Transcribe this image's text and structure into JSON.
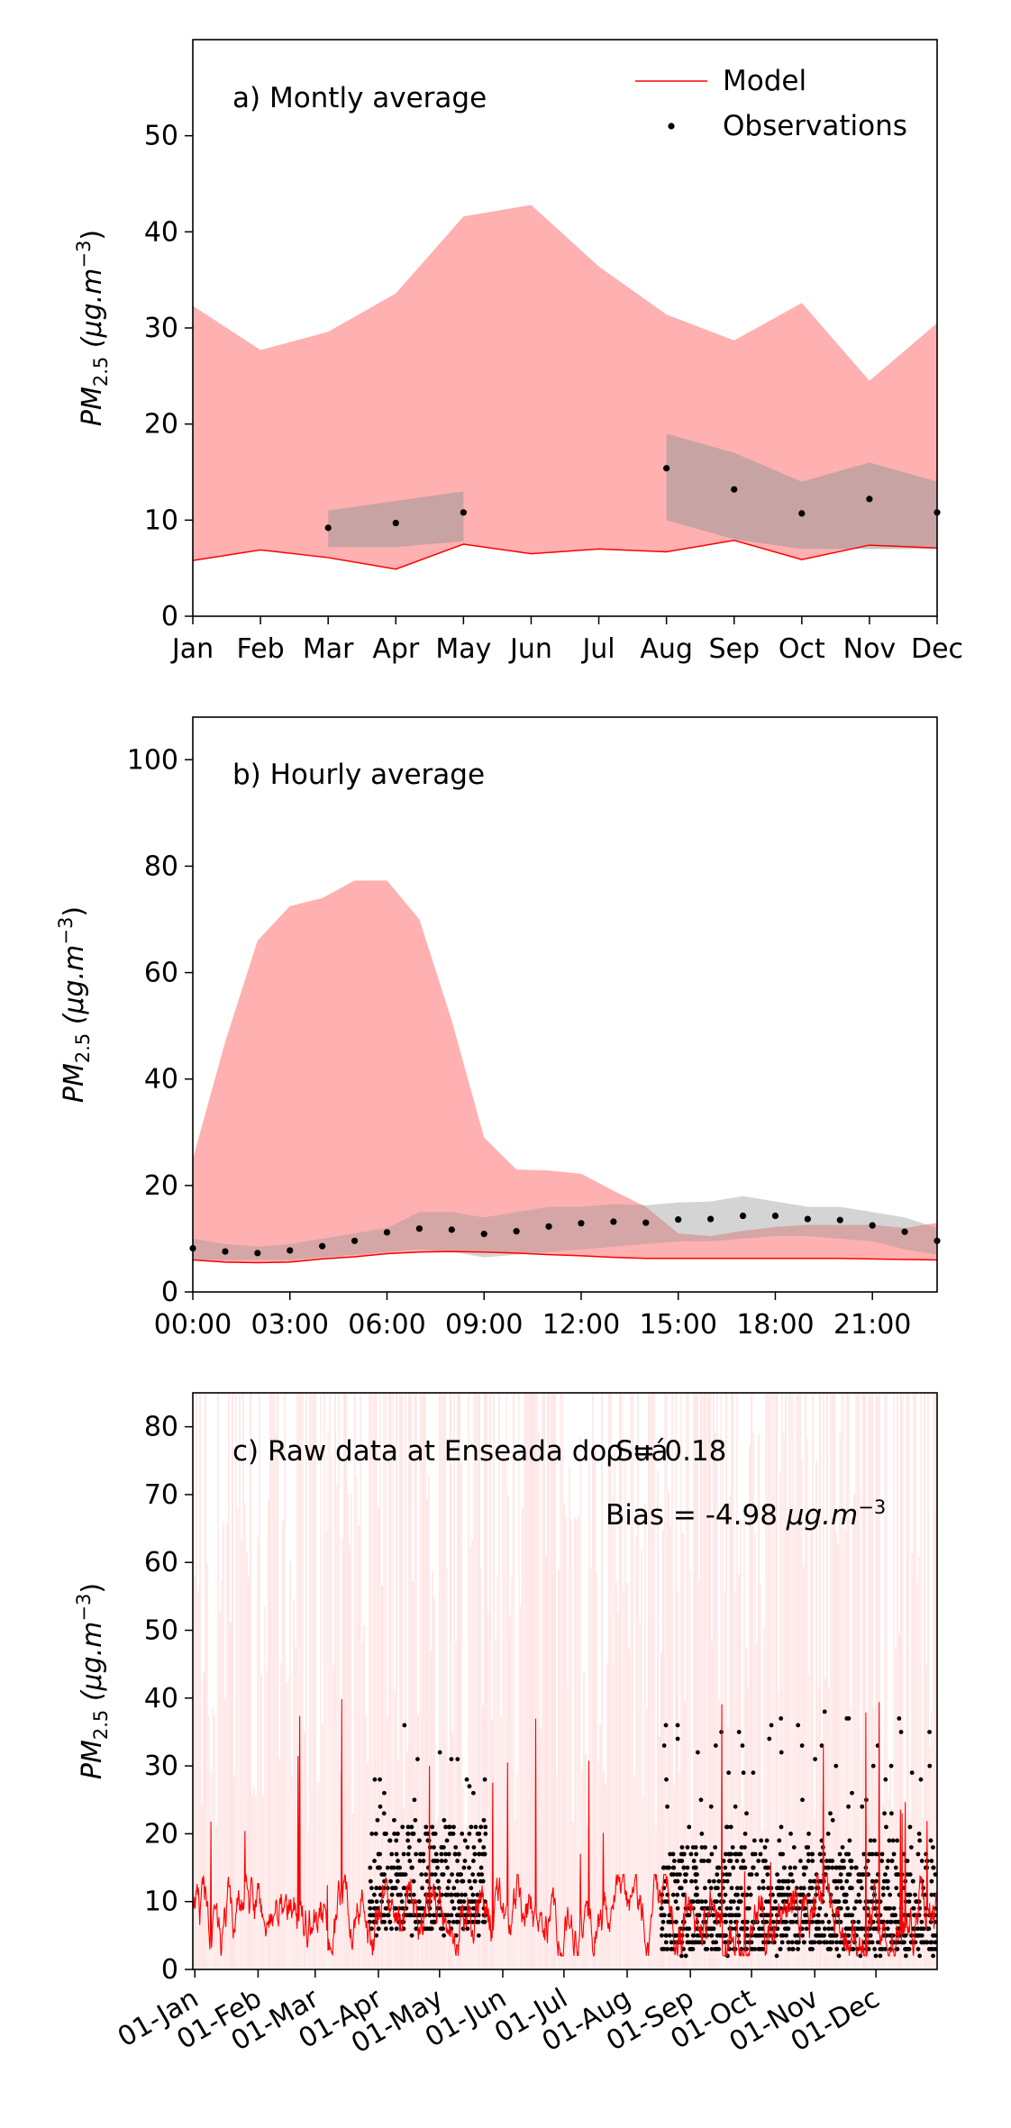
{
  "colors": {
    "model": "#ff0000",
    "model_band": "#ffb0b0",
    "obs_band": "#999999",
    "obs_point": "#000000",
    "raw_band": "#ffdddd"
  },
  "legend": {
    "placement": "top-right",
    "model_label": "Model",
    "obs_label": "Observations"
  },
  "chart_data": [
    {
      "id": "monthly",
      "type": "area",
      "title": "a) Montly average",
      "ylabel_base": "PM",
      "ylabel_sub": "2.5",
      "ylabel_unit": "(μg.m",
      "ylabel_exp": "−3",
      "ylabel_close": ")",
      "ylim": [
        0,
        60
      ],
      "yticks": [
        0,
        10,
        20,
        30,
        40,
        50
      ],
      "categories": [
        "Jan",
        "Feb",
        "Mar",
        "Apr",
        "May",
        "Jun",
        "Jul",
        "Aug",
        "Sep",
        "Oct",
        "Nov",
        "Dec"
      ],
      "model_upper": [
        32.3,
        27.7,
        29.6,
        33.6,
        41.6,
        42.8,
        36.4,
        31.4,
        28.7,
        32.6,
        24.5,
        30.5
      ],
      "model_lower": [
        5.8,
        6.9,
        6.1,
        4.9,
        7.5,
        6.5,
        7.0,
        6.7,
        7.9,
        5.9,
        7.4,
        7.1
      ],
      "obs_band_segments": [
        {
          "months": [
            2,
            3,
            4
          ],
          "upper": [
            11.0,
            12.0,
            13.0
          ],
          "lower": [
            7.2,
            7.2,
            7.8
          ]
        },
        {
          "months": [
            7,
            8,
            9,
            10,
            11
          ],
          "upper": [
            19.0,
            17.0,
            14.0,
            16.0,
            14.0
          ],
          "lower": [
            10.0,
            8.0,
            7.0,
            7.0,
            7.0
          ]
        }
      ],
      "observations": [
        {
          "month": 2,
          "value": 9.2
        },
        {
          "month": 3,
          "value": 9.7
        },
        {
          "month": 4,
          "value": 10.8
        },
        {
          "month": 7,
          "value": 15.4
        },
        {
          "month": 8,
          "value": 13.2
        },
        {
          "month": 9,
          "value": 10.7
        },
        {
          "month": 10,
          "value": 12.2
        },
        {
          "month": 11,
          "value": 10.8
        }
      ]
    },
    {
      "id": "hourly",
      "type": "area",
      "title": "b) Hourly average",
      "ylabel_base": "PM",
      "ylabel_sub": "2.5",
      "ylabel_unit": "(μg.m",
      "ylabel_exp": "−3",
      "ylabel_close": ")",
      "ylim": [
        0,
        108
      ],
      "yticks": [
        0,
        20,
        40,
        60,
        80,
        100
      ],
      "xlim": [
        0,
        23
      ],
      "xticks": [
        0,
        3,
        6,
        9,
        12,
        15,
        18,
        21
      ],
      "xtick_labels": [
        "00:00",
        "03:00",
        "06:00",
        "09:00",
        "12:00",
        "15:00",
        "18:00",
        "21:00"
      ],
      "hours": [
        0,
        1,
        2,
        3,
        4,
        5,
        6,
        7,
        8,
        9,
        10,
        11,
        12,
        13,
        14,
        15,
        16,
        17,
        18,
        19,
        20,
        21,
        22,
        23
      ],
      "model_upper": [
        25,
        47,
        66,
        72.5,
        74,
        77.3,
        77.3,
        70,
        51,
        29,
        23,
        22.8,
        22.2,
        19,
        16,
        11,
        10.5,
        11.5,
        12.2,
        12.6,
        12.6,
        12.6,
        12,
        13
      ],
      "model_lower": [
        6,
        5.6,
        5.5,
        5.6,
        6.2,
        6.6,
        7.2,
        7.5,
        7.6,
        7.5,
        7.3,
        7,
        6.8,
        6.5,
        6.3,
        6.3,
        6.3,
        6.3,
        6.3,
        6.3,
        6.3,
        6.2,
        6.1,
        6
      ],
      "obs_upper": [
        10,
        9,
        8.5,
        9,
        10,
        11,
        12,
        15,
        15,
        14,
        15,
        16,
        16,
        16.5,
        16.3,
        16.8,
        17,
        18,
        17,
        16,
        16,
        15,
        14,
        12
      ],
      "obs_lower": [
        6,
        6,
        6,
        6,
        6.5,
        7,
        7.5,
        8,
        7.5,
        6.5,
        7,
        7.5,
        8,
        8.5,
        9,
        9.5,
        9.5,
        10,
        10.5,
        10.5,
        10,
        9.5,
        8,
        7
      ],
      "observations": [
        8.2,
        7.6,
        7.3,
        7.8,
        8.6,
        9.6,
        11.2,
        11.9,
        11.7,
        10.9,
        11.4,
        12.3,
        12.9,
        13.2,
        13,
        13.6,
        13.7,
        14.3,
        14.3,
        13.7,
        13.5,
        12.5,
        11.3,
        9.6
      ]
    },
    {
      "id": "raw",
      "type": "line",
      "title": "c) Raw data at Enseada do Suá",
      "annotation_r": "ρ = 0.18",
      "annotation_bias_prefix": "Bias = -4.98 ",
      "annotation_bias_unit": "μg.m",
      "annotation_bias_exp": "−3",
      "ylabel_base": "PM",
      "ylabel_sub": "2.5",
      "ylabel_unit": "(μg.m",
      "ylabel_exp": "−3",
      "ylabel_close": ")",
      "ylim": [
        0,
        85
      ],
      "yticks": [
        0,
        10,
        20,
        30,
        40,
        50,
        60,
        70,
        80
      ],
      "x_start": "2021-12-31",
      "x_end": "2022-12-31",
      "xtick_dates": [
        "2022-01-01",
        "2022-02-01",
        "2022-03-01",
        "2022-04-01",
        "2022-05-01",
        "2022-06-01",
        "2022-07-01",
        "2022-08-01",
        "2022-09-01",
        "2022-10-01",
        "2022-11-01",
        "2022-12-01"
      ],
      "xtick_labels": [
        "01-Jan",
        "01-Feb",
        "01-Mar",
        "01-Apr",
        "01-May",
        "01-Jun",
        "01-Jul",
        "01-Aug",
        "01-Sep",
        "01-Oct",
        "01-Nov",
        "01-Dec"
      ],
      "model_typical_range": [
        2,
        14
      ],
      "model_peak_max": 40,
      "observation_periods": [
        {
          "start": "2022-03-28",
          "end": "2022-05-24",
          "range": [
            3,
            36
          ]
        },
        {
          "start": "2022-08-18",
          "end": "2022-12-31",
          "range": [
            0,
            38
          ]
        }
      ]
    }
  ]
}
